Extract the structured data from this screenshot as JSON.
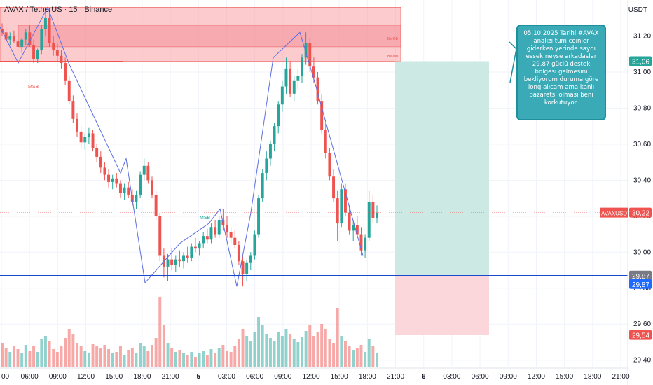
{
  "header": {
    "symbol_title": "AVAX / TetherUS · 15 · Binance",
    "currency": "USDT"
  },
  "note": {
    "text": "05.10.2025 Tarihi #AVAX analizi  tüm coinler giderken yerinde saydı essek neyse arkadaslar 29,87 güclü destek bölgesi gelmesini bekliyorum duruma göre long alıcam ama kanlı pazaretsi olması beni korkutuyor."
  },
  "annotations": {
    "msb_left": "MSB",
    "msb_mid": "MSB",
    "zone_label_top": "Be-OB",
    "zone_label_bottom": "Be-MB"
  },
  "colors": {
    "up": "#26a69a",
    "down": "#ef5350",
    "support_line": "#1848cc",
    "zigzag": "#5b6ee1",
    "supply_zone": "#f7a1a6",
    "long_target": "#cde9e3",
    "long_stop": "#fbd6da"
  },
  "chart_data": {
    "type": "candlestick",
    "title": "AVAX / TetherUS · 15 · Binance",
    "ylabel": "USDT",
    "ylim": [
      29.36,
      31.4
    ],
    "yticks": [
      "31,20",
      "31,00",
      "30,80",
      "30,60",
      "30,40",
      "30,20",
      "30,00",
      "29,80",
      "29,60",
      "29,40"
    ],
    "ytick_values": [
      31.2,
      31.0,
      30.8,
      30.6,
      30.4,
      30.2,
      30.0,
      29.8,
      29.6,
      29.4
    ],
    "xticks": [
      "00",
      "06:00",
      "09:00",
      "12:00",
      "15:00",
      "18:00",
      "21:00",
      "5",
      "03:00",
      "06:00",
      "09:00",
      "12:00",
      "15:00",
      "18:00",
      "21:00",
      "6",
      "03:00",
      "06:00",
      "09:00",
      "12:00",
      "15:00",
      "18:00",
      "21:00"
    ],
    "price_labels": [
      {
        "text": "31,06",
        "value": 31.06,
        "color": "#26a69a"
      },
      {
        "text": "30,22",
        "value": 30.22,
        "color": "#ef5350",
        "name": "AVAXUSDT"
      },
      {
        "text": "29,87",
        "value": 29.87,
        "color": "#787b86"
      },
      {
        "text": "29,87",
        "value": 29.87,
        "color": "#1f6bff"
      },
      {
        "text": "29,54",
        "value": 29.54,
        "color": "#ef5350"
      }
    ],
    "support_level": 29.87,
    "current_price": 30.22,
    "supply_zone": {
      "high": 31.36,
      "low": 31.06,
      "inner_high": 31.26,
      "inner_low": 31.14
    },
    "long_position": {
      "entry": 29.87,
      "target": 31.06,
      "stop": 29.54
    },
    "zigzag": [
      [
        0,
        31.25
      ],
      [
        26,
        31.05
      ],
      [
        68,
        31.36
      ],
      [
        98,
        31.05
      ],
      [
        172,
        30.44
      ],
      [
        180,
        30.52
      ],
      [
        207,
        29.83
      ],
      [
        257,
        30.05
      ],
      [
        298,
        30.16
      ],
      [
        314,
        30.24
      ],
      [
        338,
        29.81
      ],
      [
        358,
        30.22
      ],
      [
        390,
        31.08
      ],
      [
        428,
        31.22
      ],
      [
        448,
        30.96
      ],
      [
        518,
        29.98
      ]
    ],
    "candles_note": "approximate 15-minute OHLC sequence read from the plot",
    "candles": [
      [
        31.24,
        31.27,
        31.2,
        31.22
      ],
      [
        31.22,
        31.25,
        31.17,
        31.18
      ],
      [
        31.18,
        31.22,
        31.15,
        31.2
      ],
      [
        31.2,
        31.23,
        31.16,
        31.17
      ],
      [
        31.17,
        31.2,
        31.12,
        31.14
      ],
      [
        31.14,
        31.19,
        31.11,
        31.18
      ],
      [
        31.18,
        31.24,
        31.15,
        31.22
      ],
      [
        31.22,
        31.26,
        31.14,
        31.15
      ],
      [
        31.15,
        31.18,
        31.05,
        31.07
      ],
      [
        31.07,
        31.13,
        31.05,
        31.12
      ],
      [
        31.12,
        31.26,
        31.1,
        31.24
      ],
      [
        31.24,
        31.36,
        31.2,
        31.3
      ],
      [
        31.3,
        31.33,
        31.14,
        31.16
      ],
      [
        31.16,
        31.2,
        31.09,
        31.12
      ],
      [
        31.12,
        31.16,
        31.06,
        31.09
      ],
      [
        31.09,
        31.12,
        31.02,
        31.05
      ],
      [
        31.05,
        31.08,
        30.93,
        30.95
      ],
      [
        30.95,
        30.98,
        30.82,
        30.84
      ],
      [
        30.84,
        30.87,
        30.72,
        30.74
      ],
      [
        30.74,
        30.77,
        30.64,
        30.67
      ],
      [
        30.67,
        30.7,
        30.58,
        30.61
      ],
      [
        30.61,
        30.66,
        30.57,
        30.64
      ],
      [
        30.64,
        30.69,
        30.6,
        30.66
      ],
      [
        30.66,
        30.68,
        30.56,
        30.58
      ],
      [
        30.58,
        30.6,
        30.5,
        30.53
      ],
      [
        30.53,
        30.56,
        30.44,
        30.47
      ],
      [
        30.47,
        30.5,
        30.4,
        30.43
      ],
      [
        30.43,
        30.46,
        30.36,
        30.39
      ],
      [
        30.39,
        30.43,
        30.35,
        30.41
      ],
      [
        30.41,
        30.44,
        30.36,
        30.38
      ],
      [
        30.38,
        30.4,
        30.3,
        30.33
      ],
      [
        30.33,
        30.38,
        30.29,
        30.36
      ],
      [
        30.36,
        30.39,
        30.3,
        30.32
      ],
      [
        30.32,
        30.35,
        30.26,
        30.28
      ],
      [
        30.28,
        30.34,
        30.24,
        30.32
      ],
      [
        30.32,
        30.45,
        30.3,
        30.43
      ],
      [
        30.43,
        30.52,
        30.4,
        30.48
      ],
      [
        30.48,
        30.5,
        30.38,
        30.4
      ],
      [
        30.4,
        30.42,
        30.3,
        30.32
      ],
      [
        30.32,
        30.34,
        30.18,
        30.2
      ],
      [
        30.2,
        30.22,
        29.95,
        29.98
      ],
      [
        29.98,
        30.02,
        29.86,
        29.92
      ],
      [
        29.92,
        29.99,
        29.84,
        29.96
      ],
      [
        29.96,
        30.02,
        29.9,
        29.93
      ],
      [
        29.93,
        29.98,
        29.89,
        29.96
      ],
      [
        29.96,
        30.01,
        29.92,
        29.95
      ],
      [
        29.95,
        30.0,
        29.91,
        29.98
      ],
      [
        29.98,
        30.03,
        29.94,
        29.97
      ],
      [
        29.97,
        30.05,
        29.95,
        30.03
      ],
      [
        30.03,
        30.08,
        30.0,
        30.02
      ],
      [
        30.02,
        30.06,
        29.98,
        30.05
      ],
      [
        30.05,
        30.11,
        30.02,
        30.09
      ],
      [
        30.09,
        30.13,
        30.05,
        30.07
      ],
      [
        30.07,
        30.16,
        30.05,
        30.14
      ],
      [
        30.14,
        30.18,
        30.08,
        30.1
      ],
      [
        30.1,
        30.2,
        30.08,
        30.18
      ],
      [
        30.18,
        30.24,
        30.12,
        30.15
      ],
      [
        30.15,
        30.2,
        30.08,
        30.11
      ],
      [
        30.11,
        30.14,
        30.05,
        30.08
      ],
      [
        30.08,
        30.12,
        30.02,
        30.04
      ],
      [
        30.04,
        30.06,
        29.93,
        29.95
      ],
      [
        29.95,
        29.98,
        29.81,
        29.88
      ],
      [
        29.88,
        29.96,
        29.84,
        29.94
      ],
      [
        29.94,
        30.0,
        29.9,
        29.98
      ],
      [
        29.98,
        30.12,
        29.96,
        30.1
      ],
      [
        30.1,
        30.32,
        30.08,
        30.3
      ],
      [
        30.3,
        30.46,
        30.28,
        30.44
      ],
      [
        30.44,
        30.56,
        30.4,
        30.52
      ],
      [
        30.52,
        30.62,
        30.48,
        30.6
      ],
      [
        30.6,
        30.72,
        30.56,
        30.7
      ],
      [
        30.7,
        30.84,
        30.66,
        30.82
      ],
      [
        30.82,
        30.95,
        30.78,
        30.92
      ],
      [
        30.92,
        31.08,
        30.88,
        31.02
      ],
      [
        31.02,
        31.06,
        30.86,
        30.88
      ],
      [
        30.88,
        30.98,
        30.84,
        30.95
      ],
      [
        30.95,
        31.02,
        30.9,
        30.98
      ],
      [
        30.98,
        31.1,
        30.94,
        31.08
      ],
      [
        31.08,
        31.22,
        31.04,
        31.16
      ],
      [
        31.16,
        31.19,
        31.0,
        31.03
      ],
      [
        31.03,
        31.08,
        30.94,
        30.97
      ],
      [
        30.97,
        31.0,
        30.82,
        30.84
      ],
      [
        30.84,
        30.88,
        30.66,
        30.68
      ],
      [
        30.68,
        30.72,
        30.52,
        30.55
      ],
      [
        30.55,
        30.58,
        30.4,
        30.42
      ],
      [
        30.42,
        30.46,
        30.28,
        30.3
      ],
      [
        30.3,
        30.34,
        30.06,
        30.16
      ],
      [
        30.16,
        30.38,
        30.14,
        30.35
      ],
      [
        30.35,
        30.38,
        30.2,
        30.22
      ],
      [
        30.22,
        30.26,
        30.1,
        30.12
      ],
      [
        30.12,
        30.18,
        30.06,
        30.15
      ],
      [
        30.15,
        30.2,
        30.08,
        30.1
      ],
      [
        30.1,
        30.14,
        29.98,
        30.01
      ],
      [
        30.01,
        30.1,
        29.97,
        30.08
      ],
      [
        30.08,
        30.34,
        30.06,
        30.28
      ],
      [
        30.28,
        30.32,
        30.16,
        30.19
      ],
      [
        30.19,
        30.26,
        30.16,
        30.22
      ]
    ],
    "volume_note": "relative volume heights, same order as candles",
    "volumes": [
      0.35,
      0.28,
      0.22,
      0.3,
      0.26,
      0.2,
      0.32,
      0.24,
      0.3,
      0.22,
      0.4,
      0.45,
      0.38,
      0.26,
      0.22,
      0.3,
      0.42,
      0.55,
      0.48,
      0.35,
      0.3,
      0.24,
      0.2,
      0.34,
      0.3,
      0.28,
      0.32,
      0.26,
      0.2,
      0.22,
      0.3,
      0.18,
      0.25,
      0.28,
      0.2,
      0.35,
      0.3,
      0.24,
      0.32,
      0.42,
      1.0,
      0.6,
      0.35,
      0.28,
      0.22,
      0.25,
      0.2,
      0.18,
      0.22,
      0.15,
      0.2,
      0.24,
      0.18,
      0.26,
      0.2,
      0.28,
      0.32,
      0.24,
      0.22,
      0.3,
      0.4,
      0.55,
      0.45,
      0.38,
      0.5,
      0.72,
      0.6,
      0.48,
      0.42,
      0.38,
      0.5,
      0.45,
      0.55,
      0.48,
      0.4,
      0.36,
      0.44,
      0.52,
      0.6,
      0.45,
      0.5,
      0.62,
      0.55,
      0.4,
      0.35,
      0.85,
      0.45,
      0.38,
      0.3,
      0.25,
      0.28,
      0.32,
      0.22,
      0.4,
      0.3,
      0.2
    ]
  }
}
